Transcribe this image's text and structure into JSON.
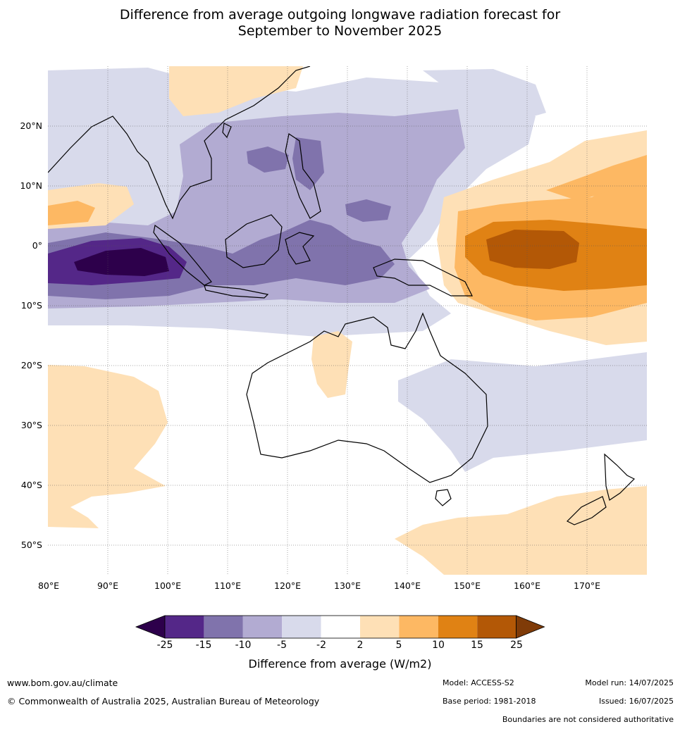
{
  "title": {
    "line1": "Difference from average outgoing longwave radiation forecast for",
    "line2": "September to November 2025"
  },
  "map": {
    "lat_labels": [
      "20°N",
      "10°N",
      "0°",
      "10°S",
      "20°S",
      "30°S",
      "40°S",
      "50°S"
    ],
    "lon_labels": [
      "80°E",
      "90°E",
      "100°E",
      "110°E",
      "120°E",
      "130°E",
      "140°E",
      "150°E",
      "160°E",
      "170°E"
    ]
  },
  "colorbar": {
    "ticks": [
      "-25",
      "-15",
      "-10",
      "-5",
      "-2",
      "2",
      "5",
      "10",
      "15",
      "25"
    ],
    "colors": [
      "#2d004b",
      "#542788",
      "#8073ac",
      "#b2abd2",
      "#d8daeb",
      "#ffffff",
      "#fee0b6",
      "#fdb863",
      "#e08214",
      "#b35806",
      "#7f3b08"
    ],
    "title": "Difference from average (W/m2)"
  },
  "footer": {
    "website": "www.bom.gov.au/climate",
    "copyright": "© Commonwealth of Australia 2025, Australian Bureau of Meteorology",
    "model": "Model: ACCESS-S2",
    "base_period": "Base period: 1981-2018",
    "model_run": "Model run: 14/07/2025",
    "issued": "Issued: 16/07/2025",
    "disclaimer": "Boundaries are not considered authoritative"
  }
}
